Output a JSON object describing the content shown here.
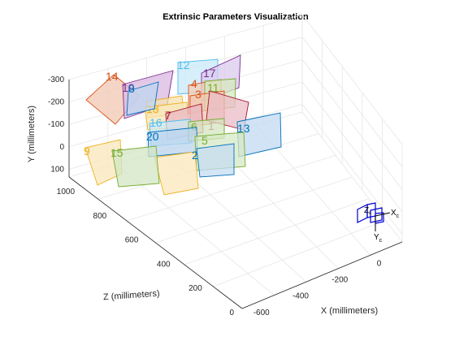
{
  "chart_data": {
    "type": "3d-plane-scatter",
    "title": "Extrinsic Parameters Visualization",
    "xlabel": "X (millimeters)",
    "ylabel": "Y (millimeters)",
    "zlabel": "Z (millimeters)",
    "x_ticks": [
      "-600",
      "-400",
      "-200",
      "0"
    ],
    "y_ticks": [
      "-300",
      "-200",
      "-100",
      "0",
      "100"
    ],
    "z_ticks": [
      "1000",
      "800",
      "600",
      "400",
      "200",
      "0"
    ],
    "xlim": [
      -650,
      100
    ],
    "ylim": [
      -300,
      130
    ],
    "zlim": [
      0,
      1050
    ],
    "grid": true,
    "camera_labels": {
      "x": "X",
      "x_sub": "c",
      "y": "Y",
      "y_sub": "c",
      "z": "Z",
      "z_sub": "c"
    },
    "camera_color": "#0000cc",
    "planes": [
      {
        "label": "14",
        "color": "#d95319",
        "fill": "#f2c7b2"
      },
      {
        "label": "10",
        "color": "#7e2f8e",
        "fill": "#d9b8e0"
      },
      {
        "label": "12",
        "color": "#4dbeee",
        "fill": "#c8e9f8"
      },
      {
        "label": "17",
        "color": "#7e2f8e",
        "fill": "#d9c9ec"
      },
      {
        "label": "8",
        "color": "#0072bd",
        "fill": "#bfd5f0"
      },
      {
        "label": "18",
        "color": "#edb120",
        "fill": "#f8e6b8"
      },
      {
        "label": "4",
        "color": "#d95319",
        "fill": "#f3cdb6"
      },
      {
        "label": "11",
        "color": "#77ac30",
        "fill": "#d7e8c0"
      },
      {
        "label": "7",
        "color": "#a2142f",
        "fill": "#e8b8c2"
      },
      {
        "label": "16",
        "color": "#4dbeee",
        "fill": "#cbe9f7"
      },
      {
        "label": "19",
        "color": "#edb120",
        "fill": "#f6e2b0"
      },
      {
        "label": "1",
        "color": "#a2142f",
        "fill": "#ebbcc6"
      },
      {
        "label": "3",
        "color": "#d95319",
        "fill": "#f0c6b0"
      },
      {
        "label": "6",
        "color": "#77ac30",
        "fill": "#d4e6c0"
      },
      {
        "label": "20",
        "color": "#0072bd",
        "fill": "#b9d3ee"
      },
      {
        "label": "13",
        "color": "#0072bd",
        "fill": "#c1d9f1"
      },
      {
        "label": "5",
        "color": "#77ac30",
        "fill": "#d6e8c4"
      },
      {
        "label": "2",
        "color": "#0072bd",
        "fill": "#c6dcf1"
      },
      {
        "label": "9",
        "color": "#edb120",
        "fill": "#f9e7bb"
      },
      {
        "label": "15",
        "color": "#77ac30",
        "fill": "#d3e6c4"
      }
    ]
  }
}
